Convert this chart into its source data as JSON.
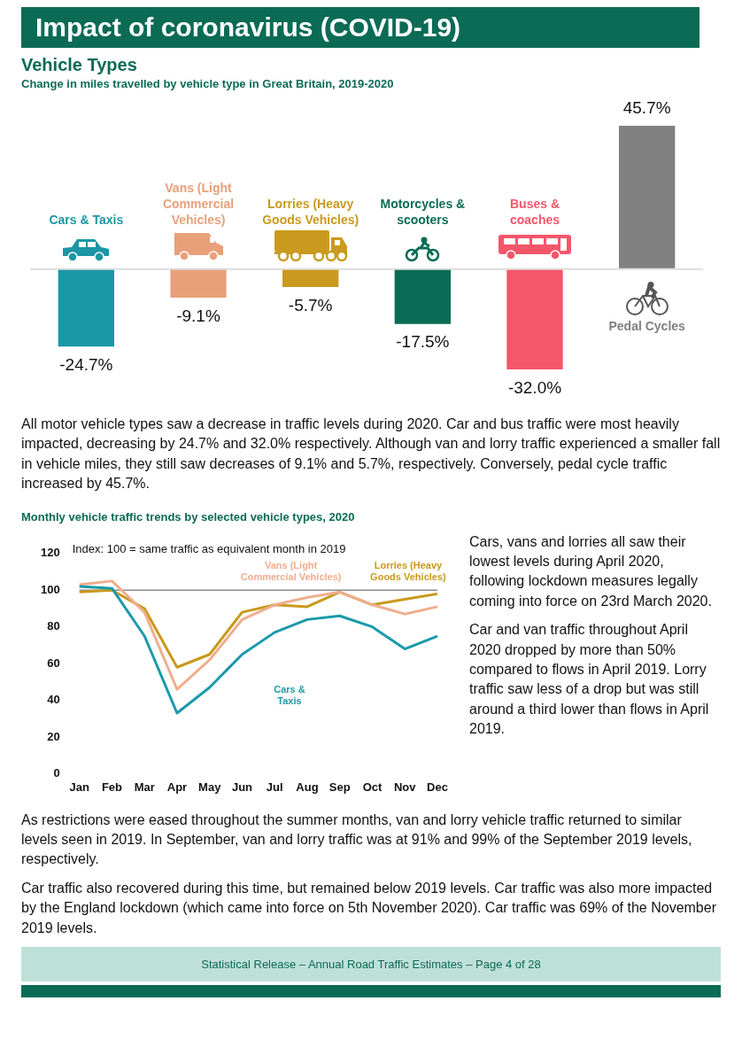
{
  "chart_data": [
    {
      "type": "bar",
      "title": "Vehicle Types",
      "subtitle": "Change in miles travelled by vehicle type in Great Britain, 2019-2020",
      "categories": [
        "Cars & Taxis",
        "Vans (Light Commercial Vehicles)",
        "Lorries (Heavy Goods Vehicles)",
        "Motorcycles & scooters",
        "Buses & coaches",
        "Pedal Cycles"
      ],
      "values": [
        -24.7,
        -9.1,
        -5.7,
        -17.5,
        -32.0,
        45.7
      ],
      "value_labels": [
        "-24.7%",
        "-9.1%",
        "-5.7%",
        "-17.5%",
        "-32.0%",
        "45.7%"
      ],
      "colors": [
        "#1b96a4",
        "#e8a07a",
        "#c99a1e",
        "#0b6b55",
        "#f4566a",
        "#808080"
      ],
      "annotations": [
        "Impact of coronavirus (COVID-19)",
        "All motor vehicle types saw a decrease in traffic levels during 2020. Car and bus traffic were most heavily impacted, decreasing by 24.7% and 32.0% respectively. Although van and lorry traffic experienced a smaller fall in vehicle miles, they still saw decreases of 9.1% and 5.7%, respectively. Conversely, pedal cycle traffic increased by 45.7%."
      ]
    },
    {
      "type": "line",
      "title": "Monthly vehicle traffic trends by selected vehicle types, 2020",
      "categories": [
        "Jan",
        "Feb",
        "Mar",
        "Apr",
        "May",
        "Jun",
        "Jul",
        "Aug",
        "Sep",
        "Oct",
        "Nov",
        "Dec"
      ],
      "series": [
        {
          "name": "Cars & Taxis",
          "color": "#1b9aaa",
          "values": [
            102,
            101,
            75,
            33,
            47,
            65,
            77,
            84,
            86,
            80,
            68,
            75
          ]
        },
        {
          "name": "Vans (Light Commercial Vehicles)",
          "color": "#efae8e",
          "values": [
            103,
            105,
            88,
            46,
            62,
            84,
            92,
            96,
            99,
            92,
            87,
            91
          ]
        },
        {
          "name": "Lorries (Heavy Goods Vehicles)",
          "color": "#c8991b",
          "values": [
            99,
            100,
            90,
            58,
            65,
            88,
            92,
            91,
            99,
            92,
            95,
            98
          ]
        }
      ],
      "ylim": [
        0,
        120
      ],
      "yticks": [
        0,
        20,
        40,
        60,
        80,
        100,
        120
      ],
      "ref_lines": [
        {
          "axis": "y",
          "value": 100,
          "color": "#8c8c8c"
        }
      ],
      "annotations": [
        "Index: 100 = same traffic as equivalent month in 2019",
        "Cars, vans and lorries all saw their lowest levels during April 2020, following lockdown measures legally coming into force on 23rd March 2020.",
        "Car and van traffic throughout April 2020 dropped by more than 50% compared to flows in April 2019. Lorry traffic saw less of a drop but was still around a third lower than flows in April 2019.",
        "As restrictions were eased throughout the summer months, van and lorry vehicle traffic returned to similar levels seen in 2019. In September, van and lorry traffic was at 91% and 99% of the September 2019 levels, respectively.",
        "Car traffic also recovered during this time, but remained below 2019 levels. Car traffic was also more impacted by the England lockdown (which came into force on 5th November 2020). Car traffic was 69% of the November 2019 levels.",
        "Statistical Release – Annual Road Traffic Estimates – Page 4 of 28"
      ]
    }
  ]
}
